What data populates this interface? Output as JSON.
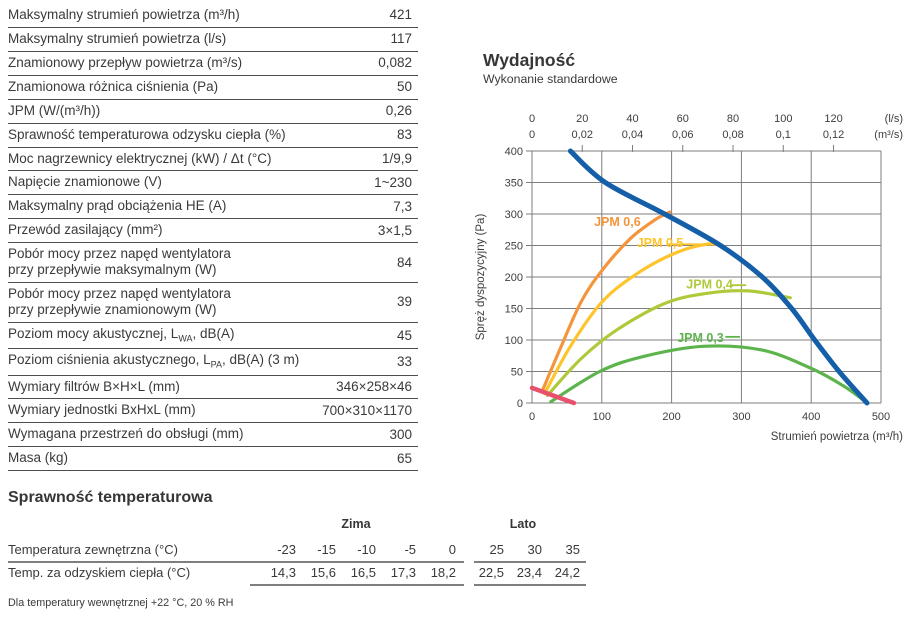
{
  "spec_table": {
    "rows": [
      {
        "label": "Maksymalny strumień powietrza (m³/h)",
        "value": "421"
      },
      {
        "label": "Maksymalny strumień powietrza (l/s)",
        "value": "117"
      },
      {
        "label": "Znamionowy przepływ powietrza (m³/s)",
        "value": "0,082"
      },
      {
        "label": "Znamionowa różnica ciśnienia (Pa)",
        "value": "50"
      },
      {
        "label": "JPM (W/(m³/h))",
        "value": "0,26"
      },
      {
        "label": "Sprawność temperaturowa odzysku ciepła (%)",
        "value": "83"
      },
      {
        "label": "Moc nagrzewnicy elektrycznej (kW) / Δt (°C)",
        "value": "1/9,9"
      },
      {
        "label": "Napięcie znamionowe (V)",
        "value": "1~230"
      },
      {
        "label": "Maksymalny prąd obciążenia HE (A)",
        "value": "7,3"
      },
      {
        "label": "Przewód zasilający (mm²)",
        "value": "3×1,5"
      },
      {
        "label": "Pobór mocy przez napęd wentylatora",
        "label2": "przy przepływie maksymalnym (W)",
        "value": "84"
      },
      {
        "label": "Pobór mocy przez napęd wentylatora",
        "label2": "przy przepływie znamionowym (W)",
        "value": "39"
      },
      {
        "label": "Poziom mocy akustycznej, L",
        "sub": "WA",
        "post": ", dB(A)",
        "value": "45"
      },
      {
        "label": "Poziom ciśnienia akustycznego, L",
        "sub": "PA",
        "post": ", dB(A) (3 m)",
        "value": "33"
      },
      {
        "label": "Wymiary filtrów B×H×L (mm)",
        "value": "346×258×46"
      },
      {
        "label": "Wymiary jednostki BxHxL (mm)",
        "value": "700×310×1170"
      },
      {
        "label": "Wymagana przestrzeń do obsługi (mm)",
        "value": "300"
      },
      {
        "label": "Masa (kg)",
        "value": "65"
      }
    ]
  },
  "chart_data": {
    "type": "line",
    "title": "Wydajność",
    "subtitle": "Wykonanie standardowe",
    "xlabel": "Strumień powietrza (m³/h)",
    "ylabel": "Spręż dyspozycyjny (Pa)",
    "xlim": [
      0,
      500
    ],
    "ylim": [
      0,
      400
    ],
    "x_ticks": [
      0,
      100,
      200,
      300,
      400,
      500
    ],
    "y_ticks": [
      0,
      50,
      100,
      150,
      200,
      250,
      300,
      350,
      400
    ],
    "grid": true,
    "legend_position": "inline-labels",
    "top_axis": {
      "ls_values": [
        0,
        20,
        40,
        60,
        80,
        100,
        120
      ],
      "ls_labels": [
        "0",
        "20",
        "40",
        "60",
        "80",
        "100",
        "120"
      ],
      "ls_unit": "(l/s)",
      "m3s_labels": [
        "0",
        "0,02",
        "0,04",
        "0,06",
        "0,08",
        "0,1",
        "0,12"
      ],
      "m3s_unit": "(m³/s)"
    },
    "series": [
      {
        "id": "jpm-06",
        "label": "JPM 0,6",
        "color": "#f5953b",
        "width": 3.2,
        "points": [
          [
            15,
            20
          ],
          [
            40,
            85
          ],
          [
            70,
            160
          ],
          [
            100,
            210
          ],
          [
            140,
            260
          ],
          [
            175,
            290
          ],
          [
            197,
            303
          ]
        ],
        "label_at": [
          89,
          281
        ]
      },
      {
        "id": "jpm-05",
        "label": "JPM 0,5",
        "color": "#fdc42c",
        "width": 3.2,
        "points": [
          [
            18,
            15
          ],
          [
            55,
            90
          ],
          [
            100,
            160
          ],
          [
            150,
            205
          ],
          [
            205,
            238
          ],
          [
            250,
            252
          ],
          [
            273,
            250
          ]
        ],
        "label_at": [
          150,
          248
        ],
        "leader": [
          [
            195,
            252
          ],
          [
            252,
            252
          ]
        ]
      },
      {
        "id": "jpm-04",
        "label": "JPM 0,4",
        "color": "#aeca3b",
        "width": 3.2,
        "points": [
          [
            22,
            12
          ],
          [
            70,
            70
          ],
          [
            120,
            115
          ],
          [
            190,
            158
          ],
          [
            250,
            174
          ],
          [
            310,
            178
          ],
          [
            370,
            167
          ]
        ],
        "label_at": [
          221,
          182
        ],
        "leader": [
          [
            284,
            187
          ],
          [
            307,
            187
          ]
        ]
      },
      {
        "id": "jpm-03",
        "label": "JPM 0,3",
        "color": "#5db44d",
        "width": 3.2,
        "points": [
          [
            27,
            2
          ],
          [
            97,
            50
          ],
          [
            160,
            74
          ],
          [
            245,
            90
          ],
          [
            330,
            84
          ],
          [
            400,
            55
          ],
          [
            445,
            28
          ],
          [
            478,
            2
          ]
        ],
        "label_at": [
          208,
          97
        ],
        "leader": [
          [
            277,
            105
          ],
          [
            298,
            105
          ]
        ]
      },
      {
        "id": "min-flow",
        "label": "",
        "color": "#e9506b",
        "width": 4.5,
        "points": [
          [
            0,
            24
          ],
          [
            60,
            0
          ]
        ]
      },
      {
        "id": "fan-curve",
        "label": "",
        "color": "#155fa9",
        "width": 5,
        "points": [
          [
            55,
            400
          ],
          [
            105,
            350
          ],
          [
            190,
            300
          ],
          [
            270,
            250
          ],
          [
            330,
            200
          ],
          [
            372,
            150
          ],
          [
            405,
            100
          ],
          [
            440,
            50
          ],
          [
            480,
            0
          ]
        ]
      }
    ]
  },
  "temperature_table": {
    "title": "Sprawność temperaturowa",
    "group_headers": {
      "winter": "Zima",
      "summer": "Lato"
    },
    "rows": [
      {
        "label": "Temperatura zewnętrzna (°C)",
        "winter": [
          "-23",
          "-15",
          "-10",
          "-5",
          "0"
        ],
        "summer": [
          "25",
          "30",
          "35"
        ]
      },
      {
        "label": "Temp. za odzyskiem ciepła (°C)",
        "winter": [
          "14,3",
          "15,6",
          "16,5",
          "17,3",
          "18,2"
        ],
        "summer": [
          "22,5",
          "23,4",
          "24,2"
        ]
      }
    ],
    "footnote": "Dla temperatury wewnętrznej +22 °C, 20 % RH"
  }
}
